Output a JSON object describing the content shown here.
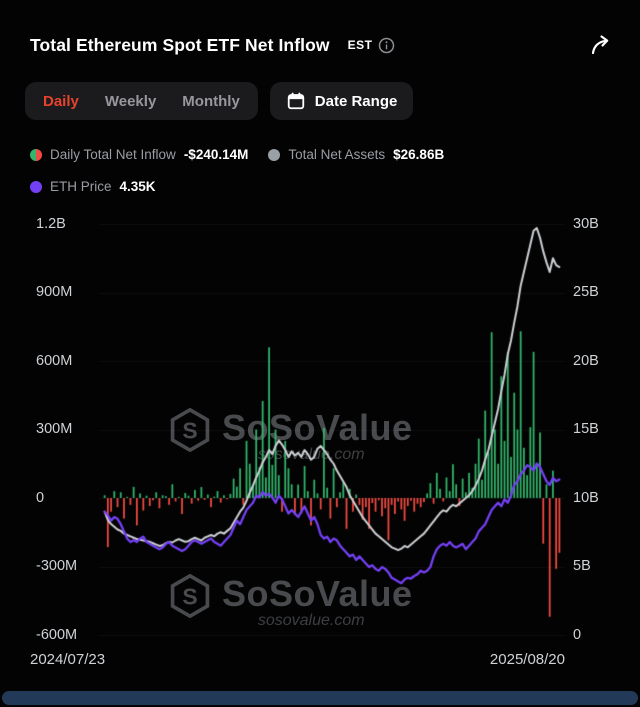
{
  "header": {
    "title": "Total Ethereum Spot ETF Net Inflow",
    "timezone_badge": "EST"
  },
  "tabs": {
    "items": [
      {
        "label": "Daily",
        "active": true
      },
      {
        "label": "Weekly",
        "active": false
      },
      {
        "label": "Monthly",
        "active": false
      }
    ],
    "date_range_label": "Date Range"
  },
  "legend": {
    "inflow_label": "Daily Total Net Inflow",
    "inflow_value": "-$240.14M",
    "assets_label": "Total Net Assets",
    "assets_value": "$26.86B",
    "eth_label": "ETH Price",
    "eth_value": "4.35K"
  },
  "watermark": {
    "brand": "SoSoValue",
    "domain": "sosovalue.com"
  },
  "chart_data": {
    "type": "bar",
    "overlays": [
      "line",
      "line"
    ],
    "title": "Total Ethereum Spot ETF Net Inflow",
    "x_ticks": [
      "2024/07/23",
      "2025/08/20"
    ],
    "left_axis": {
      "ticks": [
        "1.2B",
        "900M",
        "600M",
        "300M",
        "0",
        "-300M",
        "-600M"
      ],
      "range_musd": [
        -600,
        1200
      ]
    },
    "right_axis": {
      "ticks": [
        "30B",
        "25B",
        "20B",
        "15B",
        "10B",
        "5B",
        "0"
      ],
      "range_busd": [
        0,
        30
      ]
    },
    "eth_axis_hidden_range_k": [
      0,
      11.5
    ],
    "colors": {
      "positive": "#32b66b",
      "negative": "#f14b43",
      "assets": "#cdd0d4",
      "eth": "#7440f5"
    },
    "series": {
      "daily_net_inflow_musd": [
        12,
        -215,
        -60,
        30,
        -40,
        25,
        -90,
        5,
        -30,
        49,
        -120,
        20,
        -55,
        10,
        -35,
        -10,
        25,
        -45,
        12,
        8,
        -30,
        60,
        -15,
        5,
        -70,
        22,
        10,
        -25,
        35,
        -12,
        48,
        -8,
        15,
        -40,
        6,
        30,
        -20,
        12,
        -5,
        18,
        85,
        50,
        130,
        -30,
        250,
        150,
        60,
        300,
        135,
        425,
        90,
        660,
        145,
        300,
        100,
        -60,
        250,
        130,
        60,
        -75,
        59,
        -68,
        140,
        30,
        -120,
        80,
        20,
        -50,
        307,
        45,
        -90,
        130,
        -40,
        25,
        68,
        -135,
        40,
        -60,
        15,
        -30,
        -95,
        -40,
        -135,
        -22,
        -60,
        -10,
        -80,
        -45,
        -185,
        -30,
        -70,
        -15,
        -50,
        -100,
        -35,
        -12,
        -60,
        -25,
        -40,
        -18,
        20,
        65,
        -25,
        110,
        40,
        -15,
        90,
        30,
        148,
        60,
        -35,
        85,
        25,
        110,
        45,
        150,
        260,
        80,
        383,
        200,
        726,
        300,
        150,
        533,
        250,
        640,
        180,
        461,
        300,
        730,
        220,
        100,
        310,
        640,
        150,
        287,
        -200,
        60,
        -520,
        120,
        -310,
        -240
      ],
      "total_net_assets_busd": [
        9.0,
        8.4,
        8.1,
        7.9,
        7.7,
        7.6,
        7.4,
        7.3,
        7.2,
        7.1,
        7.0,
        6.95,
        6.9,
        6.85,
        6.8,
        6.7,
        6.6,
        6.5,
        6.55,
        6.7,
        6.8,
        6.75,
        6.9,
        7.0,
        6.9,
        6.8,
        6.85,
        7.0,
        7.1,
        7.0,
        6.9,
        7.1,
        7.2,
        7.3,
        7.2,
        7.4,
        7.5,
        7.4,
        7.6,
        7.8,
        8.2,
        8.6,
        9.0,
        9.3,
        9.8,
        10.4,
        10.9,
        11.5,
        12.0,
        12.6,
        13.0,
        13.5,
        13.2,
        13.8,
        14.2,
        13.9,
        13.5,
        13.0,
        13.4,
        13.1,
        13.3,
        13.0,
        13.5,
        13.2,
        12.8,
        13.0,
        13.6,
        13.8,
        13.5,
        13.2,
        12.8,
        12.5,
        12.0,
        11.6,
        11.2,
        10.8,
        10.2,
        9.8,
        9.4,
        9.0,
        8.6,
        8.3,
        8.0,
        7.7,
        7.4,
        7.2,
        7.0,
        6.8,
        6.6,
        6.4,
        6.3,
        6.2,
        6.3,
        6.5,
        6.4,
        6.6,
        6.8,
        7.0,
        7.2,
        7.4,
        7.7,
        8.0,
        8.3,
        8.6,
        8.9,
        9.1,
        9.0,
        9.3,
        9.5,
        9.4,
        9.6,
        9.8,
        10.0,
        10.2,
        10.5,
        10.9,
        11.4,
        12.0,
        12.8,
        13.5,
        14.5,
        15.5,
        16.5,
        17.8,
        19.0,
        20.5,
        21.5,
        22.8,
        24.0,
        25.5,
        26.5,
        27.5,
        28.5,
        29.5,
        29.7,
        29.0,
        28.0,
        27.2,
        26.5,
        27.5,
        27.0,
        26.86
      ],
      "eth_price_kusd": [
        3.45,
        3.35,
        3.2,
        3.3,
        3.25,
        3.1,
        2.9,
        2.7,
        2.6,
        2.65,
        2.6,
        2.7,
        2.75,
        2.6,
        2.55,
        2.5,
        2.45,
        2.4,
        2.45,
        2.55,
        2.6,
        2.5,
        2.45,
        2.4,
        2.35,
        2.4,
        2.5,
        2.6,
        2.65,
        2.6,
        2.55,
        2.6,
        2.65,
        2.7,
        2.6,
        2.55,
        2.5,
        2.6,
        2.7,
        2.8,
        3.0,
        3.2,
        3.1,
        3.3,
        3.5,
        3.6,
        3.7,
        3.9,
        3.85,
        4.0,
        3.9,
        3.95,
        3.85,
        3.7,
        3.9,
        3.8,
        3.6,
        3.4,
        3.5,
        3.4,
        3.3,
        3.45,
        3.6,
        3.4,
        3.2,
        3.3,
        3.1,
        2.8,
        2.7,
        2.75,
        2.6,
        2.7,
        2.65,
        2.5,
        2.4,
        2.3,
        2.2,
        2.25,
        2.1,
        2.2,
        2.1,
        2.0,
        1.9,
        1.95,
        1.85,
        1.8,
        1.9,
        1.85,
        1.75,
        1.6,
        1.55,
        1.5,
        1.45,
        1.55,
        1.6,
        1.58,
        1.65,
        1.7,
        1.8,
        1.75,
        1.8,
        1.9,
        2.2,
        2.4,
        2.5,
        2.55,
        2.5,
        2.6,
        2.5,
        2.45,
        2.5,
        2.55,
        2.4,
        2.5,
        2.6,
        2.7,
        2.9,
        3.0,
        3.1,
        3.3,
        3.5,
        3.6,
        3.7,
        3.6,
        3.8,
        3.7,
        3.9,
        4.2,
        4.3,
        4.5,
        4.6,
        4.75,
        4.7,
        4.6,
        4.8,
        4.7,
        4.5,
        4.3,
        4.2,
        4.4,
        4.3,
        4.35
      ]
    }
  }
}
